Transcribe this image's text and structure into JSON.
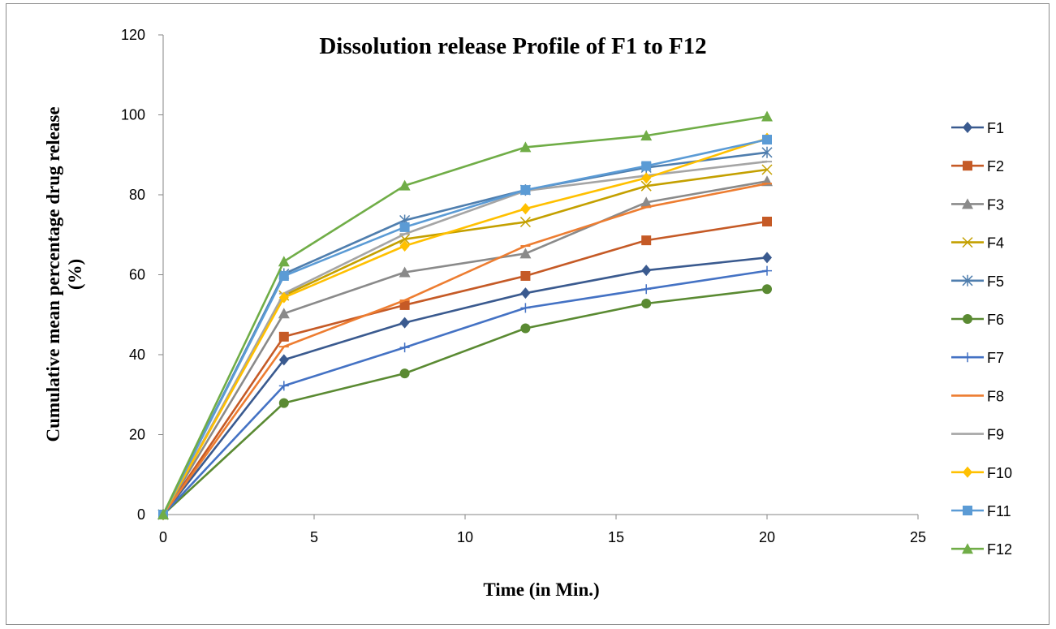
{
  "chart_data": {
    "type": "line",
    "title": "Dissolution release Profile of F1 to F12",
    "xlabel": "Time (in Min.)",
    "ylabel_lines": [
      "Cumulative mean percentage drug release",
      "(%)"
    ],
    "xlim": [
      0,
      25
    ],
    "ylim": [
      0,
      120
    ],
    "xticks": [
      "0",
      "5",
      "10",
      "15",
      "20",
      "25"
    ],
    "yticks": [
      "0",
      "20",
      "40",
      "60",
      "80",
      "100",
      "120"
    ],
    "legend_position": "right",
    "grid": false,
    "x": [
      0,
      4,
      8,
      12,
      16,
      20
    ],
    "series": [
      {
        "name": "F1",
        "color": "#3a5a8f",
        "marker": "diamond",
        "values": [
          0,
          38.7,
          48.0,
          55.4,
          61.1,
          64.3
        ]
      },
      {
        "name": "F2",
        "color": "#c55a26",
        "marker": "square",
        "values": [
          0,
          44.5,
          52.4,
          59.7,
          68.6,
          73.3
        ]
      },
      {
        "name": "F3",
        "color": "#8a8a8a",
        "marker": "triangle",
        "values": [
          0,
          50.3,
          60.6,
          65.3,
          78.1,
          83.4
        ]
      },
      {
        "name": "F4",
        "color": "#c4a000",
        "marker": "x",
        "values": [
          0,
          54.8,
          68.9,
          73.2,
          82.2,
          86.3
        ]
      },
      {
        "name": "F5",
        "color": "#4f7eae",
        "marker": "star",
        "values": [
          0,
          60.2,
          73.6,
          81.2,
          86.8,
          90.6
        ]
      },
      {
        "name": "F6",
        "color": "#5a8a32",
        "marker": "circle",
        "values": [
          0,
          27.9,
          35.3,
          46.6,
          52.8,
          56.4
        ]
      },
      {
        "name": "F7",
        "color": "#4472c4",
        "marker": "plus",
        "values": [
          0,
          32.2,
          41.8,
          51.7,
          56.4,
          61.0
        ]
      },
      {
        "name": "F8",
        "color": "#ed7d31",
        "marker": "dash",
        "values": [
          0,
          42.0,
          53.6,
          67.2,
          76.9,
          82.8
        ]
      },
      {
        "name": "F9",
        "color": "#a5a5a5",
        "marker": "dash",
        "values": [
          0,
          55.3,
          70.2,
          81.0,
          84.8,
          88.3
        ]
      },
      {
        "name": "F10",
        "color": "#ffc000",
        "marker": "diamond",
        "values": [
          0,
          54.3,
          67.2,
          76.5,
          84.2,
          94.1
        ]
      },
      {
        "name": "F11",
        "color": "#5b9bd5",
        "marker": "square",
        "values": [
          0,
          59.7,
          71.9,
          81.2,
          87.2,
          93.8
        ]
      },
      {
        "name": "F12",
        "color": "#70ad47",
        "marker": "triangle",
        "values": [
          0,
          63.3,
          82.3,
          91.9,
          94.8,
          99.6
        ]
      }
    ]
  }
}
